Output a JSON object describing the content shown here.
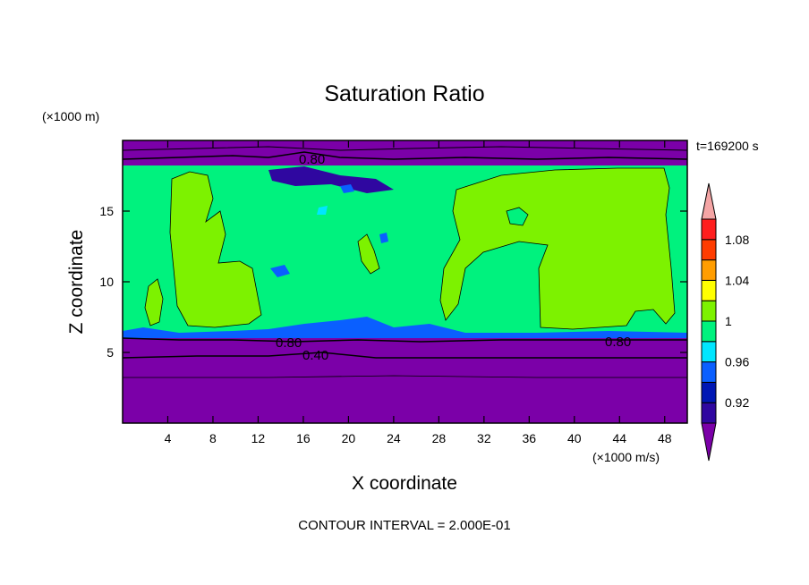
{
  "chart_data": {
    "type": "contour",
    "title": "Saturation Ratio",
    "xlabel": "X coordinate",
    "ylabel": "Z coordinate",
    "x_unit": "(×1000 m/s)",
    "y_unit": "(×1000 m)",
    "time_label": "t=169200 s",
    "footer": "CONTOUR INTERVAL = 2.000E-01",
    "xlim": [
      0,
      50
    ],
    "ylim": [
      0,
      20
    ],
    "x_ticks": [
      "4",
      "8",
      "12",
      "16",
      "20",
      "24",
      "28",
      "32",
      "36",
      "40",
      "44",
      "48"
    ],
    "y_ticks": [
      "5",
      "10",
      "15"
    ],
    "contour_labels": [
      "0.80",
      "0.80",
      "0.40",
      "0.80"
    ],
    "colorbar": {
      "ticks": [
        "1.08",
        "1.04",
        "1",
        "0.96",
        "0.92"
      ],
      "levels": [
        0.9,
        0.92,
        0.94,
        0.96,
        0.98,
        1.0,
        1.02,
        1.04,
        1.06,
        1.08,
        1.1
      ],
      "colors": [
        "#7b00a8",
        "#2f07a0",
        "#0017b4",
        "#0a5fff",
        "#00e6ff",
        "#00f27e",
        "#7df200",
        "#ffff00",
        "#ff9d00",
        "#ff3c00",
        "#ff1e1e",
        "#f5a5a5"
      ]
    }
  }
}
